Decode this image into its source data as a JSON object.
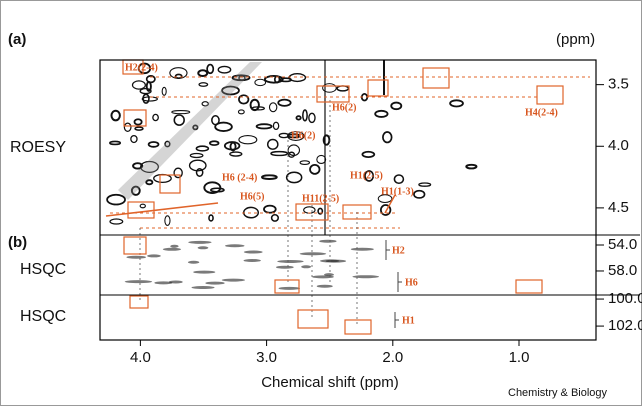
{
  "chart_data": {
    "type": "nmr-stack",
    "panel_labels": [
      "(a)",
      "(b)"
    ],
    "y_unit": "(ppm)",
    "xlabel": "Chemical shift (ppm)",
    "credit": "Chemistry & Biology",
    "xlim": [
      4.32,
      0.39
    ],
    "xticks": [
      {
        "value": 4,
        "label": "4.0"
      },
      {
        "value": 3,
        "label": "3.0"
      },
      {
        "value": 2,
        "label": "2.0"
      },
      {
        "value": 1,
        "label": "1.0"
      }
    ],
    "panels": [
      {
        "name": "ROESY",
        "ylim": [
          3.3,
          4.72
        ],
        "yticks": [
          3.5,
          {
            "value": 4,
            "label": "4.0"
          },
          4.5
        ]
      },
      {
        "name": "HSQC",
        "ylim": [
          52.46,
          61.7
        ],
        "yticks": [
          {
            "value": 54,
            "label": "54.0"
          },
          {
            "value": 58,
            "label": "58.0"
          }
        ]
      },
      {
        "name": "HSQC",
        "ylim": [
          99.7,
          103.03
        ],
        "yticks": [
          {
            "value": 100,
            "label": "100.0"
          },
          {
            "value": 102,
            "label": "102.0"
          }
        ]
      }
    ],
    "annotations": [
      "H2(2-4)",
      "H6(2)",
      "H4(2-4)",
      "H6(2)",
      "H6 (2-4)",
      "H1(2-5)",
      "H1(1-3)",
      "H6(5)",
      "H11(2-5)",
      "H2",
      "H6",
      "H1"
    ]
  }
}
